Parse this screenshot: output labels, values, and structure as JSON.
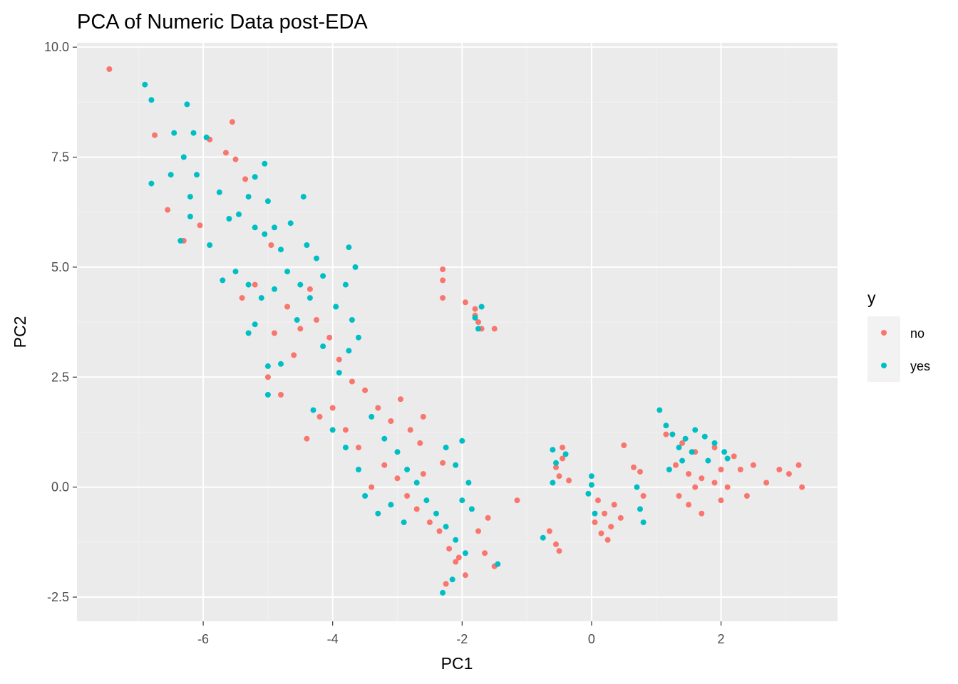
{
  "chart_data": {
    "type": "scatter",
    "title": "PCA of Numeric Data post-EDA",
    "xlabel": "PC1",
    "ylabel": "PC2",
    "xlim": [
      -7.95,
      3.8
    ],
    "ylim": [
      -3.05,
      10.1
    ],
    "x_ticks": [
      -6,
      -4,
      -2,
      0,
      2
    ],
    "y_ticks": [
      -2.5,
      0.0,
      2.5,
      5.0,
      7.5,
      10.0
    ],
    "x_tick_labels": [
      "-6",
      "-4",
      "-2",
      "0",
      "2"
    ],
    "y_tick_labels": [
      "-2.5",
      "0.0",
      "2.5",
      "5.0",
      "7.5",
      "10.0"
    ],
    "grid": true,
    "legend": {
      "title": "y",
      "position": "right"
    },
    "series": [
      {
        "name": "no",
        "color": "#F8766D",
        "points": [
          [
            -7.45,
            9.5
          ],
          [
            -6.75,
            8.0
          ],
          [
            -6.55,
            6.3
          ],
          [
            -5.55,
            8.3
          ],
          [
            -6.3,
            5.6
          ],
          [
            -6.05,
            5.95
          ],
          [
            -5.65,
            7.6
          ],
          [
            -5.5,
            7.45
          ],
          [
            -5.9,
            7.9
          ],
          [
            -5.35,
            7.0
          ],
          [
            -4.95,
            5.5
          ],
          [
            -4.7,
            4.1
          ],
          [
            -4.5,
            3.6
          ],
          [
            -4.25,
            3.8
          ],
          [
            -4.35,
            4.5
          ],
          [
            -4.05,
            3.4
          ],
          [
            -3.9,
            2.9
          ],
          [
            -3.7,
            2.4
          ],
          [
            -3.5,
            2.2
          ],
          [
            -3.3,
            1.8
          ],
          [
            -3.1,
            1.5
          ],
          [
            -2.95,
            2.0
          ],
          [
            -2.8,
            1.3
          ],
          [
            -2.65,
            1.0
          ],
          [
            -3.2,
            0.5
          ],
          [
            -3.0,
            0.2
          ],
          [
            -2.85,
            -0.2
          ],
          [
            -2.7,
            -0.5
          ],
          [
            -2.6,
            0.3
          ],
          [
            -2.5,
            -0.8
          ],
          [
            -2.35,
            -1.0
          ],
          [
            -2.2,
            -1.4
          ],
          [
            -2.1,
            -1.7
          ],
          [
            -1.95,
            -2.0
          ],
          [
            -2.05,
            -1.6
          ],
          [
            -2.25,
            -2.2
          ],
          [
            -3.4,
            0.0
          ],
          [
            -3.6,
            0.9
          ],
          [
            -3.8,
            1.3
          ],
          [
            -4.0,
            1.8
          ],
          [
            -4.2,
            1.6
          ],
          [
            -4.4,
            1.1
          ],
          [
            -5.0,
            2.5
          ],
          [
            -4.8,
            2.1
          ],
          [
            -5.2,
            4.6
          ],
          [
            -5.4,
            4.3
          ],
          [
            -4.9,
            3.5
          ],
          [
            -4.6,
            3.0
          ],
          [
            -2.3,
            4.95
          ],
          [
            -2.3,
            4.7
          ],
          [
            -2.3,
            4.3
          ],
          [
            -1.8,
            4.05
          ],
          [
            -1.75,
            3.75
          ],
          [
            -1.7,
            3.6
          ],
          [
            -1.5,
            3.6
          ],
          [
            -1.8,
            3.9
          ],
          [
            -1.95,
            4.2
          ],
          [
            -0.55,
            0.45
          ],
          [
            -0.45,
            0.65
          ],
          [
            -0.5,
            0.25
          ],
          [
            -0.35,
            0.15
          ],
          [
            -0.45,
            0.9
          ],
          [
            0.1,
            -0.3
          ],
          [
            0.2,
            -0.6
          ],
          [
            0.3,
            -0.9
          ],
          [
            0.15,
            -1.05
          ],
          [
            0.35,
            -0.4
          ],
          [
            0.25,
            -1.2
          ],
          [
            0.05,
            -0.8
          ],
          [
            0.45,
            -0.7
          ],
          [
            0.5,
            0.95
          ],
          [
            0.65,
            0.45
          ],
          [
            0.75,
            0.35
          ],
          [
            0.8,
            -0.2
          ],
          [
            -0.65,
            -1.0
          ],
          [
            -0.55,
            -1.3
          ],
          [
            -0.5,
            -1.45
          ],
          [
            -1.15,
            -0.3
          ],
          [
            1.3,
            0.5
          ],
          [
            1.5,
            0.3
          ],
          [
            1.7,
            0.2
          ],
          [
            1.9,
            0.1
          ],
          [
            2.1,
            0.0
          ],
          [
            2.3,
            0.4
          ],
          [
            1.5,
            -0.4
          ],
          [
            1.7,
            -0.6
          ],
          [
            2.0,
            -0.3
          ],
          [
            2.4,
            -0.2
          ],
          [
            2.7,
            0.1
          ],
          [
            2.9,
            0.4
          ],
          [
            3.05,
            0.3
          ],
          [
            3.25,
            0.0
          ],
          [
            3.2,
            0.5
          ],
          [
            1.15,
            1.2
          ],
          [
            1.4,
            1.0
          ],
          [
            1.6,
            0.8
          ],
          [
            1.9,
            0.9
          ],
          [
            2.2,
            0.7
          ],
          [
            2.5,
            0.5
          ],
          [
            1.35,
            -0.2
          ],
          [
            1.6,
            0.0
          ],
          [
            2.0,
            0.4
          ],
          [
            -1.75,
            -1.0
          ],
          [
            -1.65,
            -1.5
          ],
          [
            -1.6,
            -0.7
          ],
          [
            -1.5,
            -1.8
          ],
          [
            -2.3,
            0.55
          ],
          [
            -2.6,
            1.6
          ]
        ]
      },
      {
        "name": "yes",
        "color": "#00BFC4",
        "points": [
          [
            -6.9,
            9.15
          ],
          [
            -6.8,
            8.8
          ],
          [
            -6.25,
            8.7
          ],
          [
            -6.45,
            8.05
          ],
          [
            -6.15,
            8.05
          ],
          [
            -5.95,
            7.95
          ],
          [
            -6.3,
            7.5
          ],
          [
            -6.5,
            7.1
          ],
          [
            -6.1,
            7.1
          ],
          [
            -6.8,
            6.9
          ],
          [
            -6.2,
            6.6
          ],
          [
            -5.75,
            6.7
          ],
          [
            -5.6,
            6.1
          ],
          [
            -5.45,
            6.2
          ],
          [
            -5.2,
            5.9
          ],
          [
            -5.05,
            5.75
          ],
          [
            -4.9,
            5.9
          ],
          [
            -5.05,
            7.35
          ],
          [
            -5.2,
            7.05
          ],
          [
            -5.3,
            6.6
          ],
          [
            -5.0,
            6.5
          ],
          [
            -4.8,
            5.4
          ],
          [
            -4.65,
            6.0
          ],
          [
            -4.45,
            6.6
          ],
          [
            -4.4,
            5.5
          ],
          [
            -4.25,
            5.2
          ],
          [
            -4.15,
            4.8
          ],
          [
            -4.35,
            4.3
          ],
          [
            -4.5,
            4.6
          ],
          [
            -4.7,
            4.9
          ],
          [
            -4.9,
            4.5
          ],
          [
            -5.1,
            4.3
          ],
          [
            -5.3,
            4.6
          ],
          [
            -5.5,
            4.9
          ],
          [
            -5.7,
            4.7
          ],
          [
            -5.9,
            5.5
          ],
          [
            -6.35,
            5.6
          ],
          [
            -6.2,
            6.15
          ],
          [
            -3.75,
            5.45
          ],
          [
            -3.65,
            5.0
          ],
          [
            -3.8,
            4.6
          ],
          [
            -3.95,
            4.1
          ],
          [
            -3.7,
            3.8
          ],
          [
            -3.6,
            3.4
          ],
          [
            -3.75,
            3.1
          ],
          [
            -3.9,
            2.6
          ],
          [
            -4.15,
            3.2
          ],
          [
            -4.55,
            3.8
          ],
          [
            -4.8,
            2.8
          ],
          [
            -5.0,
            2.1
          ],
          [
            -5.2,
            3.7
          ],
          [
            -3.4,
            1.6
          ],
          [
            -3.2,
            1.1
          ],
          [
            -3.0,
            0.8
          ],
          [
            -2.85,
            0.4
          ],
          [
            -2.7,
            0.1
          ],
          [
            -2.55,
            -0.3
          ],
          [
            -2.4,
            -0.6
          ],
          [
            -2.25,
            -0.9
          ],
          [
            -2.1,
            -1.2
          ],
          [
            -1.95,
            -1.5
          ],
          [
            -2.0,
            -0.3
          ],
          [
            -1.9,
            0.1
          ],
          [
            -2.1,
            0.5
          ],
          [
            -2.0,
            1.05
          ],
          [
            -2.25,
            0.9
          ],
          [
            -2.3,
            -2.4
          ],
          [
            -2.15,
            -2.1
          ],
          [
            -3.5,
            -0.2
          ],
          [
            -3.3,
            -0.6
          ],
          [
            -3.1,
            -0.4
          ],
          [
            -2.9,
            -0.8
          ],
          [
            -3.6,
            0.4
          ],
          [
            -3.8,
            0.9
          ],
          [
            -4.0,
            1.3
          ],
          [
            -4.3,
            1.75
          ],
          [
            -1.45,
            -1.75
          ],
          [
            -1.85,
            -0.5
          ],
          [
            -1.8,
            3.85
          ],
          [
            -1.7,
            4.1
          ],
          [
            -1.75,
            3.6
          ],
          [
            -0.6,
            0.85
          ],
          [
            -0.55,
            0.55
          ],
          [
            -0.4,
            0.75
          ],
          [
            -0.6,
            0.1
          ],
          [
            0.0,
            0.25
          ],
          [
            0.0,
            0.05
          ],
          [
            -0.05,
            -0.15
          ],
          [
            0.05,
            -0.6
          ],
          [
            0.75,
            -0.5
          ],
          [
            0.7,
            0.0
          ],
          [
            0.8,
            -0.8
          ],
          [
            -0.75,
            -1.15
          ],
          [
            1.05,
            1.75
          ],
          [
            1.15,
            1.4
          ],
          [
            1.25,
            1.2
          ],
          [
            1.35,
            0.9
          ],
          [
            1.45,
            1.1
          ],
          [
            1.55,
            0.8
          ],
          [
            1.75,
            1.15
          ],
          [
            1.9,
            1.0
          ],
          [
            2.05,
            0.8
          ],
          [
            2.1,
            0.65
          ],
          [
            1.4,
            0.6
          ],
          [
            1.2,
            0.4
          ],
          [
            1.6,
            1.3
          ],
          [
            1.8,
            0.6
          ],
          [
            -5.0,
            2.75
          ],
          [
            -5.3,
            3.5
          ]
        ]
      }
    ]
  }
}
